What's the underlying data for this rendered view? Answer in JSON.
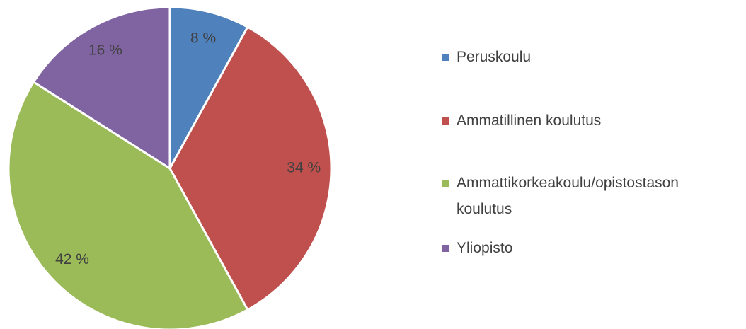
{
  "chart_data": {
    "type": "pie",
    "categories": [
      "Peruskoulu",
      "Ammatillinen koulutus",
      "Ammattikorkeakoulu/opistostason koulutus",
      "Yliopisto"
    ],
    "values": [
      8,
      34,
      42,
      16
    ],
    "value_labels": [
      "8 %",
      "34 %",
      "42 %",
      "16 %"
    ],
    "colors": [
      "#4f81bd",
      "#c0504d",
      "#9bbb59",
      "#8064a2"
    ],
    "legend": "right"
  }
}
